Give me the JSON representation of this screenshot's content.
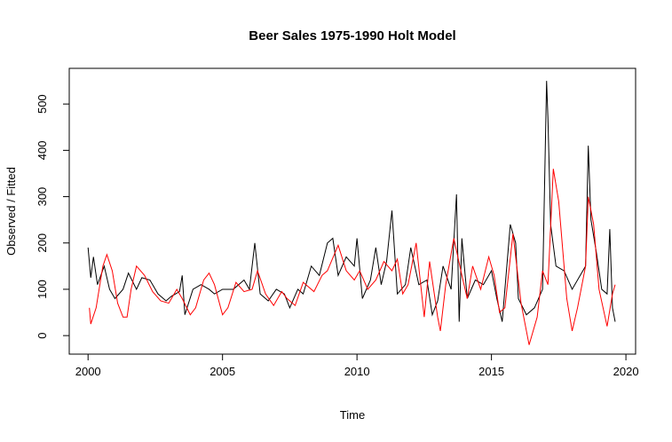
{
  "chart_data": {
    "type": "line",
    "title": "Beer Sales 1975-1990 Holt Model",
    "x_label": "Time",
    "y_label": "Observed / Fitted",
    "xlim": [
      1999.3,
      2020.36
    ],
    "ylim": [
      -40,
      577
    ],
    "xticks": [
      2000,
      2005,
      2010,
      2015,
      2020
    ],
    "yticks": [
      0,
      100,
      200,
      300,
      400,
      500
    ],
    "series": [
      {
        "name": "Observed",
        "color": "#000000",
        "x": [
          2000,
          2000.1,
          2000.2,
          2000.35,
          2000.6,
          2000.8,
          2001,
          2001.3,
          2001.5,
          2001.8,
          2002,
          2002.3,
          2002.6,
          2002.9,
          2003.1,
          2003.4,
          2003.5,
          2003.6,
          2003.9,
          2004.2,
          2004.5,
          2004.7,
          2005,
          2005.4,
          2005.8,
          2006,
          2006.2,
          2006.4,
          2006.7,
          2007,
          2007.3,
          2007.5,
          2007.8,
          2008,
          2008.3,
          2008.6,
          2008.9,
          2009.1,
          2009.3,
          2009.6,
          2009.9,
          2010,
          2010.2,
          2010.5,
          2010.7,
          2010.9,
          2011.1,
          2011.3,
          2011.5,
          2011.8,
          2012,
          2012.3,
          2012.6,
          2012.8,
          2013,
          2013.2,
          2013.5,
          2013.7,
          2013.8,
          2013.9,
          2014.1,
          2014.4,
          2014.7,
          2015,
          2015.2,
          2015.4,
          2015.5,
          2015.7,
          2015.9,
          2016,
          2016.3,
          2016.6,
          2016.9,
          2017.05,
          2017.1,
          2017.2,
          2017.4,
          2017.7,
          2018,
          2018.3,
          2018.5,
          2018.6,
          2018.7,
          2018.9,
          2019.1,
          2019.3,
          2019.4,
          2019.5,
          2019.6
        ],
        "values": [
          190,
          125,
          170,
          110,
          150,
          100,
          80,
          100,
          135,
          100,
          125,
          120,
          90,
          75,
          85,
          95,
          130,
          45,
          100,
          110,
          100,
          90,
          100,
          100,
          120,
          100,
          200,
          90,
          75,
          100,
          90,
          60,
          100,
          90,
          150,
          130,
          200,
          210,
          130,
          170,
          150,
          210,
          80,
          120,
          190,
          110,
          160,
          270,
          90,
          110,
          190,
          110,
          120,
          45,
          75,
          150,
          100,
          305,
          30,
          210,
          80,
          120,
          110,
          140,
          80,
          30,
          100,
          240,
          200,
          80,
          45,
          60,
          100,
          550,
          470,
          240,
          150,
          140,
          100,
          130,
          150,
          410,
          250,
          180,
          100,
          90,
          230,
          60,
          30
        ]
      },
      {
        "name": "Fitted",
        "color": "#ff0000",
        "x": [
          2000.05,
          2000.1,
          2000.3,
          2000.55,
          2000.7,
          2000.9,
          2001.1,
          2001.3,
          2001.45,
          2001.6,
          2001.8,
          2002.1,
          2002.4,
          2002.7,
          2003,
          2003.3,
          2003.5,
          2003.8,
          2004,
          2004.3,
          2004.5,
          2004.7,
          2005,
          2005.2,
          2005.5,
          2005.8,
          2006.1,
          2006.3,
          2006.6,
          2006.9,
          2007.2,
          2007.4,
          2007.7,
          2008,
          2008.4,
          2008.7,
          2008.9,
          2009.3,
          2009.6,
          2009.9,
          2010.1,
          2010.4,
          2010.7,
          2011,
          2011.3,
          2011.5,
          2011.7,
          2011.9,
          2012.2,
          2012.5,
          2012.7,
          2013,
          2013.1,
          2013.3,
          2013.6,
          2013.9,
          2014.1,
          2014.3,
          2014.6,
          2014.9,
          2015.1,
          2015.3,
          2015.5,
          2015.8,
          2016.1,
          2016.4,
          2016.7,
          2016.9,
          2017.1,
          2017.3,
          2017.5,
          2017.8,
          2018,
          2018.2,
          2018.5,
          2018.6,
          2018.8,
          2019,
          2019.3,
          2019.5,
          2019.6
        ],
        "values": [
          60,
          25,
          60,
          150,
          175,
          140,
          70,
          40,
          40,
          100,
          150,
          130,
          95,
          75,
          70,
          100,
          80,
          45,
          60,
          120,
          135,
          110,
          45,
          60,
          115,
          95,
          100,
          140,
          90,
          65,
          95,
          80,
          65,
          115,
          95,
          130,
          140,
          195,
          140,
          120,
          140,
          100,
          120,
          160,
          140,
          165,
          90,
          110,
          200,
          40,
          160,
          40,
          10,
          110,
          210,
          130,
          80,
          150,
          100,
          170,
          130,
          50,
          60,
          220,
          70,
          -20,
          40,
          140,
          110,
          360,
          290,
          80,
          10,
          60,
          150,
          300,
          240,
          100,
          20,
          90,
          110
        ]
      }
    ]
  }
}
